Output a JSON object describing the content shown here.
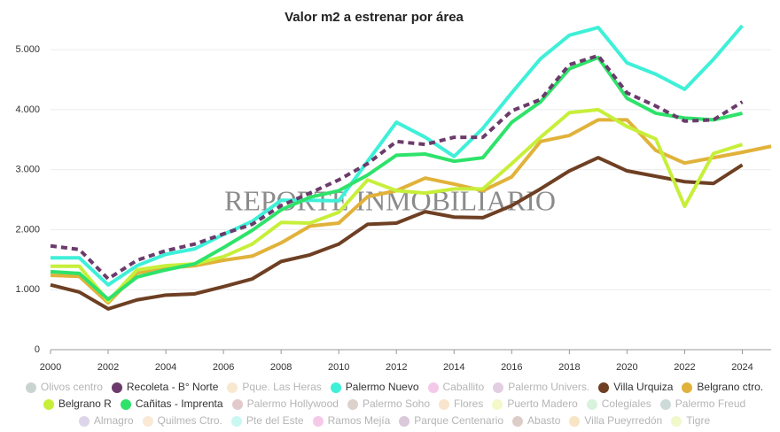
{
  "chart_data": {
    "type": "line",
    "title": "Valor m2 a estrenar por área",
    "watermark": "REPORTE INMOBILIARIO",
    "x": [
      2000,
      2001,
      2002,
      2003,
      2004,
      2005,
      2006,
      2007,
      2008,
      2009,
      2010,
      2011,
      2012,
      2013,
      2014,
      2015,
      2016,
      2017,
      2018,
      2019,
      2020,
      2021,
      2022,
      2023,
      2024,
      2025
    ],
    "xlim": [
      2000,
      2025
    ],
    "xticks": [
      2000,
      2002,
      2004,
      2006,
      2008,
      2010,
      2012,
      2014,
      2016,
      2018,
      2020,
      2022,
      2024
    ],
    "ylim": [
      0,
      5400
    ],
    "yticks": [
      0,
      {
        "value": 1000,
        "label": "1.000"
      },
      {
        "value": 2000,
        "label": "2.000"
      },
      {
        "value": 3000,
        "label": "3.000"
      },
      {
        "value": 4000,
        "label": "4.000"
      },
      {
        "value": 5000,
        "label": "5.000"
      }
    ],
    "grid": true,
    "series": [
      {
        "name": "Olivos centro",
        "color": "#c9d4d0",
        "hidden": true
      },
      {
        "name": "Recoleta - B° Norte",
        "color": "#6b3b6b",
        "dashed": true,
        "values": [
          1730,
          1670,
          1180,
          1490,
          1650,
          1760,
          1930,
          2090,
          2400,
          2610,
          2830,
          3100,
          3470,
          3420,
          3540,
          3540,
          3980,
          4170,
          4750,
          4900,
          4280,
          4060,
          3810,
          3830,
          4130,
          null
        ]
      },
      {
        "name": "Pque. Las Heras",
        "color": "#f8e8cf",
        "hidden": true
      },
      {
        "name": "Palermo Nuevo",
        "color": "#3ef0d8",
        "values": [
          1530,
          1530,
          1080,
          1400,
          1590,
          1680,
          1920,
          2140,
          2490,
          2490,
          2480,
          3140,
          3790,
          3540,
          3220,
          3690,
          4280,
          4850,
          5240,
          5370,
          4780,
          4590,
          4340,
          4840,
          5400,
          null
        ]
      },
      {
        "name": "Caballito",
        "color": "#f5c8ea",
        "hidden": true
      },
      {
        "name": "Palermo Univers.",
        "color": "#e2cee2",
        "hidden": true
      },
      {
        "name": "Villa Urquiza",
        "color": "#6e3f23",
        "values": [
          1080,
          960,
          680,
          830,
          910,
          930,
          1050,
          1180,
          1470,
          1580,
          1760,
          2090,
          2110,
          2300,
          2210,
          2200,
          2400,
          2680,
          2980,
          3200,
          2980,
          2890,
          2800,
          2770,
          3080,
          null
        ]
      },
      {
        "name": "Belgrano ctro.",
        "color": "#e1b23a",
        "values": [
          1240,
          1220,
          780,
          1280,
          1360,
          1400,
          1490,
          1560,
          1780,
          2060,
          2110,
          2550,
          2650,
          2860,
          2760,
          2650,
          2880,
          3470,
          3570,
          3830,
          3830,
          3320,
          3110,
          3200,
          3290,
          3390
        ]
      },
      {
        "name": "Belgrano R",
        "color": "#c7ef3a",
        "values": [
          1390,
          1390,
          810,
          1330,
          1400,
          1430,
          1550,
          1760,
          2120,
          2110,
          2290,
          2830,
          2650,
          2610,
          2680,
          2680,
          3100,
          3540,
          3950,
          4000,
          3720,
          3510,
          2390,
          3270,
          3420,
          null
        ]
      },
      {
        "name": "Cañitas - Imprenta",
        "color": "#2ee26a",
        "values": [
          1300,
          1270,
          840,
          1210,
          1330,
          1430,
          1700,
          1990,
          2330,
          2540,
          2650,
          2910,
          3240,
          3260,
          3140,
          3200,
          3790,
          4130,
          4680,
          4870,
          4190,
          3940,
          3860,
          3830,
          3940,
          null
        ]
      },
      {
        "name": "Palermo Hollywood",
        "color": "#e2caca",
        "hidden": true
      },
      {
        "name": "Palermo Soho",
        "color": "#ddd1cc",
        "hidden": true
      },
      {
        "name": "Flores",
        "color": "#f9e4cd",
        "hidden": true
      },
      {
        "name": "Puerto Madero",
        "color": "#f3f9c9",
        "hidden": true
      },
      {
        "name": "Colegiales",
        "color": "#d9f2dc",
        "hidden": true
      },
      {
        "name": "Palermo Freud",
        "color": "#cddad7",
        "hidden": true
      },
      {
        "name": "Almagro",
        "color": "#ddd5e9",
        "hidden": true
      },
      {
        "name": "Quilmes Ctro.",
        "color": "#f9e9d5",
        "hidden": true
      },
      {
        "name": "Pte del Este",
        "color": "#c9f7f2",
        "hidden": true
      },
      {
        "name": "Ramos Mejía",
        "color": "#f6c9e9",
        "hidden": true
      },
      {
        "name": "Parque Centenario",
        "color": "#d9c9d9",
        "hidden": true
      },
      {
        "name": "Abasto",
        "color": "#ddcdc9",
        "hidden": true
      },
      {
        "name": "Villa Pueyrredón",
        "color": "#f8e5c5",
        "hidden": true
      },
      {
        "name": "Tigre",
        "color": "#f1f8c9",
        "hidden": true
      }
    ]
  }
}
